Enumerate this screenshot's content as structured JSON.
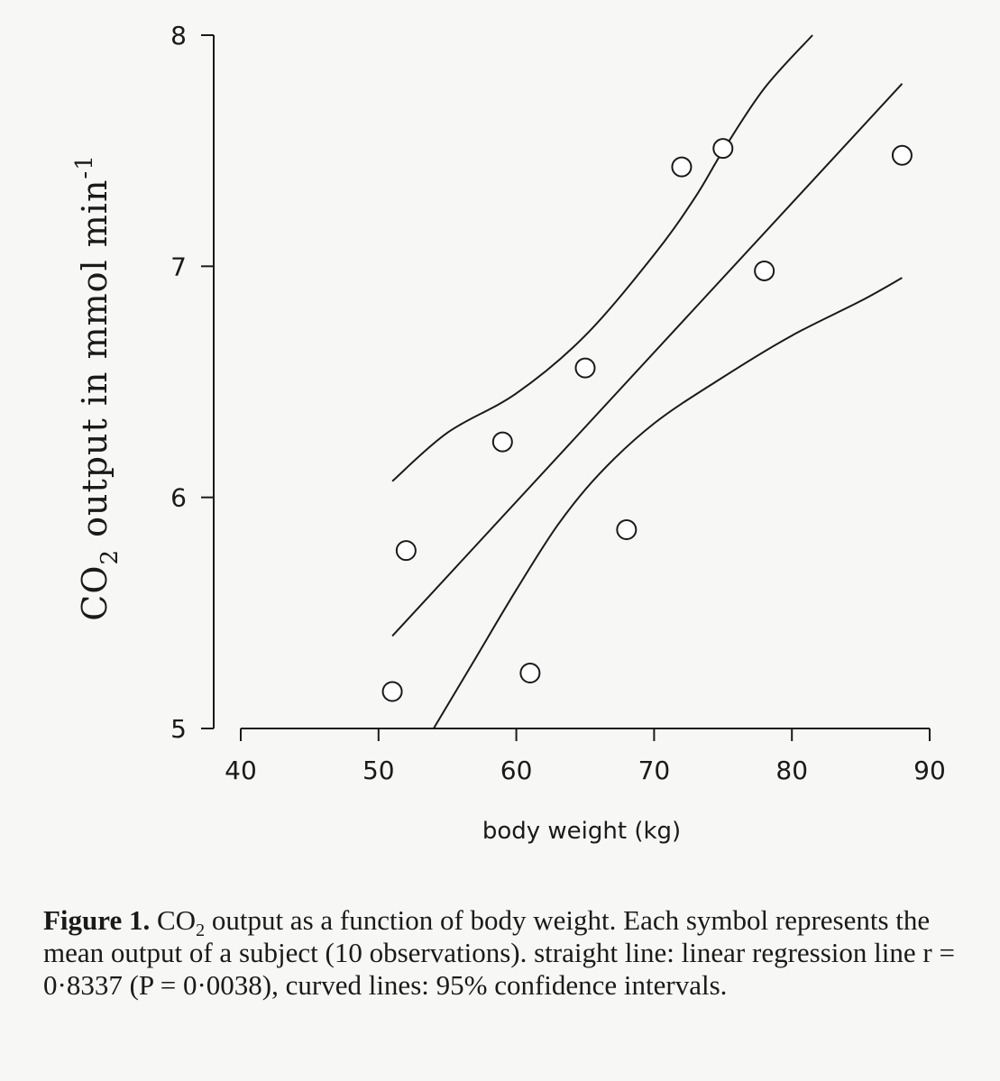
{
  "chart_data": {
    "type": "scatter",
    "xlabel": "body weight (kg)",
    "ylabel": {
      "prefix": "CO",
      "subscript": "2",
      "suffix": " output in mmol min",
      "superscript": "-1"
    },
    "xlim": [
      40,
      90
    ],
    "ylim": [
      5,
      8
    ],
    "x_ticks": [
      40,
      50,
      60,
      70,
      80,
      90
    ],
    "y_ticks": [
      5,
      6,
      7,
      8
    ],
    "x_tick_labels": [
      "40",
      "50",
      "60",
      "70",
      "80",
      "90"
    ],
    "y_tick_labels": [
      "5",
      "6",
      "7",
      "8"
    ],
    "grid": false,
    "points": [
      {
        "x": 51,
        "y": 5.16
      },
      {
        "x": 52,
        "y": 5.77
      },
      {
        "x": 59,
        "y": 6.24
      },
      {
        "x": 61,
        "y": 5.24
      },
      {
        "x": 65,
        "y": 6.56
      },
      {
        "x": 68,
        "y": 5.86
      },
      {
        "x": 72,
        "y": 7.43
      },
      {
        "x": 75,
        "y": 7.51
      },
      {
        "x": 78,
        "y": 6.98
      },
      {
        "x": 88,
        "y": 7.48
      }
    ],
    "regression": {
      "x_start": 51,
      "x_end": 88,
      "y_start": 5.4,
      "y_end": 7.79
    },
    "confidence_upper": [
      [
        51,
        6.07
      ],
      [
        55,
        6.28
      ],
      [
        60,
        6.45
      ],
      [
        65,
        6.7
      ],
      [
        70,
        7.05
      ],
      [
        73,
        7.3
      ],
      [
        75,
        7.5
      ],
      [
        78,
        7.77
      ],
      [
        81.5,
        8.0
      ]
    ],
    "confidence_lower": [
      [
        54,
        5.0
      ],
      [
        57,
        5.3
      ],
      [
        60,
        5.6
      ],
      [
        63,
        5.88
      ],
      [
        66,
        6.1
      ],
      [
        70,
        6.32
      ],
      [
        75,
        6.52
      ],
      [
        80,
        6.7
      ],
      [
        85,
        6.85
      ],
      [
        88,
        6.95
      ]
    ]
  },
  "caption": {
    "label": "Figure 1.",
    "text_pre": " CO",
    "text_sub": "2",
    "text_post": " output as a function of body weight. Each symbol represents the mean output of a subject (10 observations). straight line: linear regression line r = 0·8337 (P = 0·0038), curved lines: 95% confidence intervals."
  }
}
